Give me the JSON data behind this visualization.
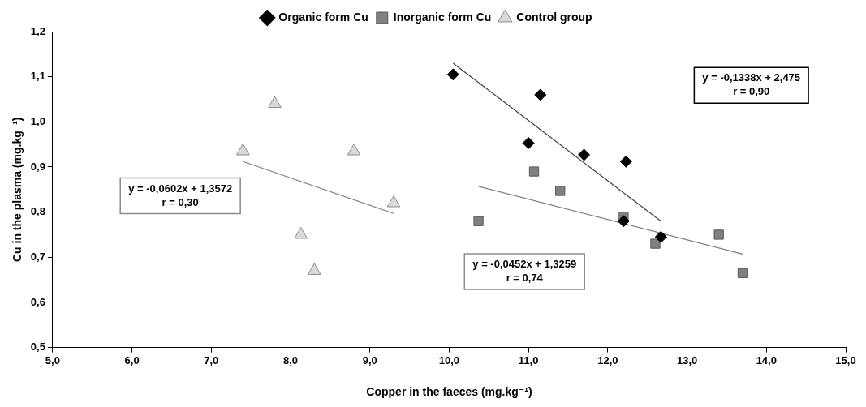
{
  "chart_data": {
    "type": "scatter",
    "xlabel": "Copper in the faeces (mg.kg⁻¹)",
    "ylabel": "Cu in the plasma (mg.kg⁻¹)",
    "xlim": [
      5,
      15
    ],
    "xticks": [
      {
        "value": 5,
        "label": "5,0"
      },
      {
        "value": 6,
        "label": "6,0"
      },
      {
        "value": 7,
        "label": "7,0"
      },
      {
        "value": 8,
        "label": "8,0"
      },
      {
        "value": 9,
        "label": "9,0"
      },
      {
        "value": 10,
        "label": "10,0"
      },
      {
        "value": 11,
        "label": "11,0"
      },
      {
        "value": 12,
        "label": "12,0"
      },
      {
        "value": 13,
        "label": "13,0"
      },
      {
        "value": 14,
        "label": "14,0"
      },
      {
        "value": 15,
        "label": "15,0"
      }
    ],
    "ylim": [
      0.5,
      1.2
    ],
    "yticks": [
      {
        "value": 0.5,
        "label": "0,5"
      },
      {
        "value": 0.6,
        "label": "0,6"
      },
      {
        "value": 0.7,
        "label": "0,7"
      },
      {
        "value": 0.8,
        "label": "0,8"
      },
      {
        "value": 0.9,
        "label": "0,9"
      },
      {
        "value": 1.0,
        "label": "1,0"
      },
      {
        "value": 1.1,
        "label": "1,1"
      },
      {
        "value": 1.2,
        "label": "1,2"
      }
    ],
    "grid": false,
    "legend": "top",
    "series": [
      {
        "name": "Organic form Cu",
        "color": "#000000",
        "marker": "diamond",
        "x": [
          10.05,
          11.15,
          11.0,
          11.7,
          12.23,
          12.2,
          12.67
        ],
        "values": [
          1.105,
          1.06,
          0.953,
          0.927,
          0.912,
          0.78,
          0.745
        ]
      },
      {
        "name": "Inorganic form Cu",
        "color": "#808080",
        "marker": "square",
        "x": [
          11.07,
          11.4,
          10.37,
          12.2,
          12.6,
          13.4,
          13.7
        ],
        "values": [
          0.89,
          0.847,
          0.78,
          0.79,
          0.73,
          0.75,
          0.665
        ]
      },
      {
        "name": "Control group",
        "color": "#d9d9d9",
        "marker": "triangle",
        "x": [
          7.8,
          7.4,
          8.8,
          9.3,
          8.13,
          8.3
        ],
        "values": [
          1.04,
          0.935,
          0.935,
          0.82,
          0.75,
          0.67
        ]
      },
      {
        "type": "line",
        "color": "#404040",
        "marker": "none",
        "x": [
          10.05,
          12.67
        ],
        "values": [
          1.13,
          0.78
        ]
      },
      {
        "type": "line",
        "color": "#808080",
        "marker": "none",
        "x": [
          10.37,
          13.7
        ],
        "values": [
          0.857,
          0.707
        ]
      },
      {
        "type": "line",
        "color": "#808080",
        "marker": "none",
        "x": [
          7.4,
          9.3
        ],
        "values": [
          0.912,
          0.797
        ]
      }
    ],
    "annotations": [
      "y = -0,1338x + 2,475\nr = 0,90",
      "y = -0,0452x + 1,3259\nr = 0,74",
      "y = -0,0602x + 1,3572\nr = 0,30"
    ]
  }
}
